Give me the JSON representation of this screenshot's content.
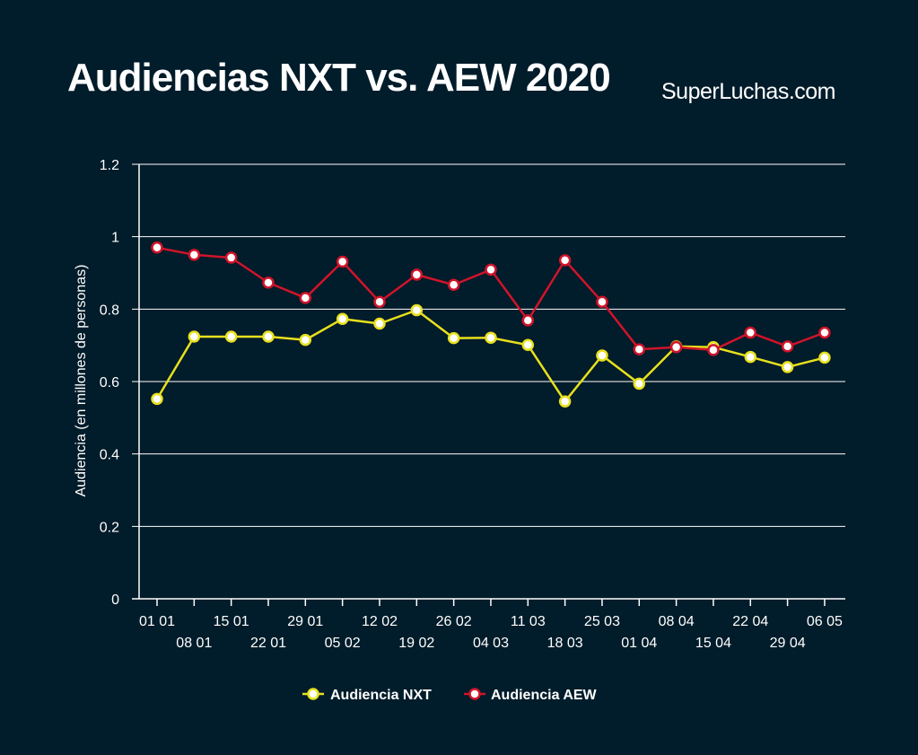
{
  "header": {
    "title": "Audiencias NXT vs. AEW 2020",
    "site": "SuperLuchas.com"
  },
  "colors": {
    "background": "#011c2a",
    "nxt": "#e8e01e",
    "aew": "#d0142a",
    "grid": "#ffffff"
  },
  "chart_data": {
    "type": "line",
    "title": "Audiencias NXT vs. AEW 2020",
    "xlabel": "",
    "ylabel": "Audiencia (en millones de personas)",
    "ylim": [
      0,
      1.2
    ],
    "yticks": [
      "0",
      "0.2",
      "0.4",
      "0.6",
      "0.8",
      "1",
      "1.2"
    ],
    "grid": true,
    "legend_position": "bottom",
    "categories": [
      "01 01",
      "08 01",
      "15 01",
      "22 01",
      "29 01",
      "05 02",
      "12 02",
      "19 02",
      "26 02",
      "04 03",
      "11 03",
      "18 03",
      "25 03",
      "01 04",
      "08 04",
      "15 04",
      "22 04",
      "29 04",
      "06 05"
    ],
    "series": [
      {
        "name": "Audiencia NXT",
        "color": "#e8e01e",
        "values": [
          0.552,
          0.724,
          0.724,
          0.724,
          0.715,
          0.773,
          0.76,
          0.797,
          0.72,
          0.721,
          0.701,
          0.545,
          0.672,
          0.594,
          0.697,
          0.695,
          0.668,
          0.64,
          0.666
        ]
      },
      {
        "name": "Audiencia AEW",
        "color": "#d0142a",
        "values": [
          0.97,
          0.95,
          0.942,
          0.873,
          0.831,
          0.931,
          0.82,
          0.895,
          0.867,
          0.909,
          0.769,
          0.935,
          0.82,
          0.689,
          0.695,
          0.687,
          0.735,
          0.697,
          0.735
        ]
      }
    ]
  }
}
